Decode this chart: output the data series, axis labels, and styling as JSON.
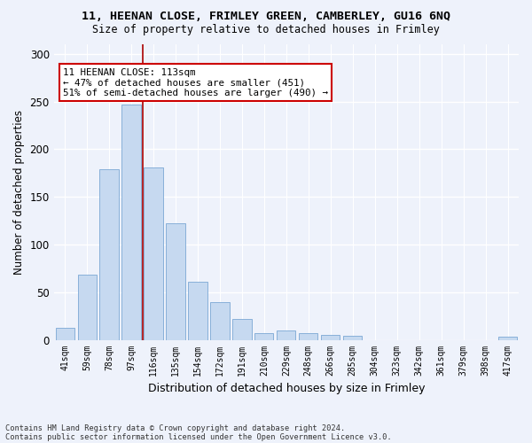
{
  "title_line1": "11, HEENAN CLOSE, FRIMLEY GREEN, CAMBERLEY, GU16 6NQ",
  "title_line2": "Size of property relative to detached houses in Frimley",
  "xlabel": "Distribution of detached houses by size in Frimley",
  "ylabel": "Number of detached properties",
  "categories": [
    "41sqm",
    "59sqm",
    "78sqm",
    "97sqm",
    "116sqm",
    "135sqm",
    "154sqm",
    "172sqm",
    "191sqm",
    "210sqm",
    "229sqm",
    "248sqm",
    "266sqm",
    "285sqm",
    "304sqm",
    "323sqm",
    "342sqm",
    "361sqm",
    "379sqm",
    "398sqm",
    "417sqm"
  ],
  "values": [
    13,
    68,
    179,
    247,
    181,
    122,
    61,
    40,
    22,
    7,
    10,
    7,
    5,
    4,
    0,
    0,
    0,
    0,
    0,
    0,
    3
  ],
  "bar_color": "#c6d9f0",
  "bar_edge_color": "#7ba7d4",
  "vline_color": "#aa0000",
  "annotation_text": "11 HEENAN CLOSE: 113sqm\n← 47% of detached houses are smaller (451)\n51% of semi-detached houses are larger (490) →",
  "annotation_box_color": "#ffffff",
  "annotation_box_edge": "#cc0000",
  "ylim": [
    0,
    310
  ],
  "yticks": [
    0,
    50,
    100,
    150,
    200,
    250,
    300
  ],
  "footer_line1": "Contains HM Land Registry data © Crown copyright and database right 2024.",
  "footer_line2": "Contains public sector information licensed under the Open Government Licence v3.0.",
  "bg_color": "#eef2fb",
  "grid_color": "#ffffff"
}
